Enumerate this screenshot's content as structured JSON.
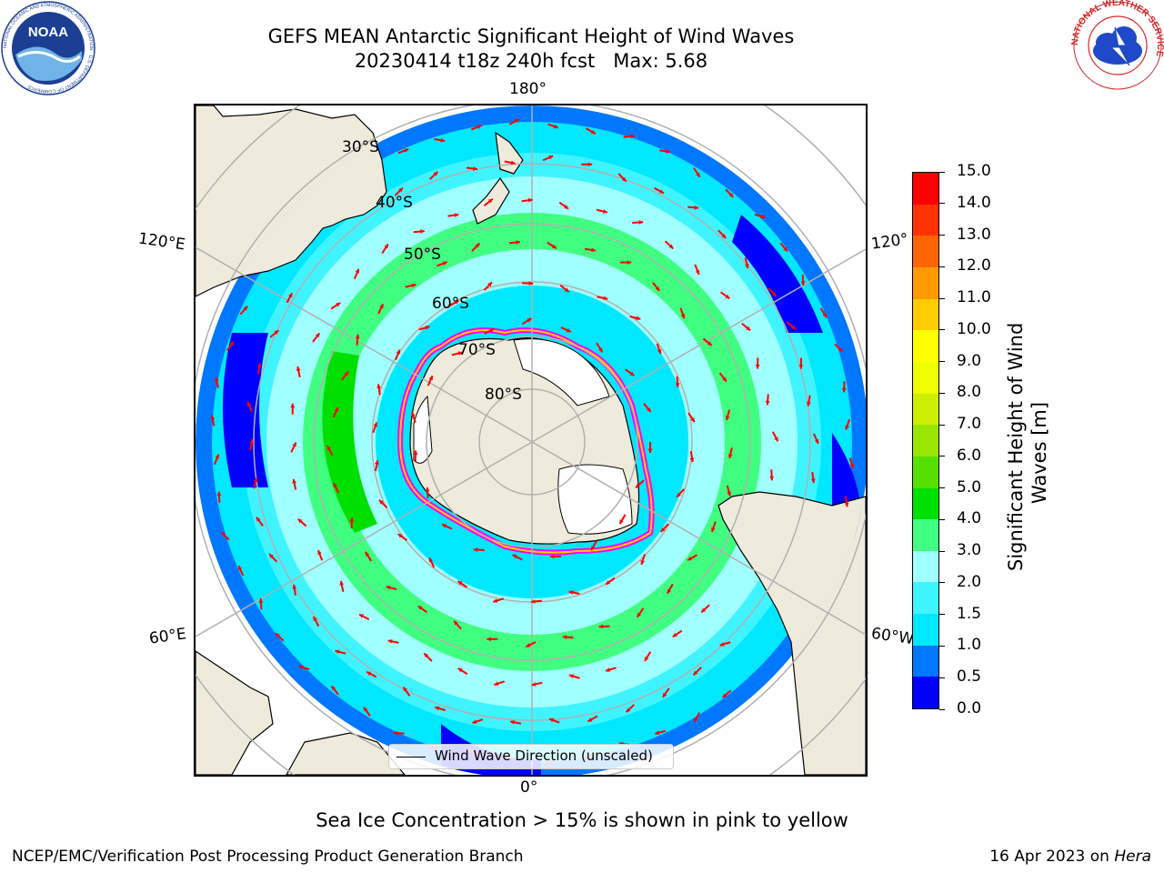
{
  "title": {
    "line1": "GEFS MEAN Antarctic Significant Height of Wind Waves",
    "line2": "20230414 t18z 240h fcst   Max: 5.68"
  },
  "logos": {
    "left_text": "NOAA",
    "left_ring_text": "NATIONAL OCEANIC AND ATMOSPHERIC ADMINISTRATION · U.S. DEPARTMENT OF COMMERCE",
    "right_ring_text": "NATIONAL WEATHER SERVICE"
  },
  "map": {
    "projection": "south-polar-stereographic",
    "longitude_labels": {
      "top": "180°",
      "bottom": "0°",
      "upper_left": "120°E",
      "upper_right": "120°",
      "lower_left": "60°E",
      "lower_right": "60°W"
    },
    "latitude_labels": [
      "30°S",
      "40°S",
      "50°S",
      "60°S",
      "70°S",
      "80°S"
    ],
    "colors": {
      "land": "#efebdc",
      "ice_shelf": "#ffffff",
      "grid": "#b0b0b0",
      "arrow": "#ff0000",
      "sea_ice_edge": [
        "#ff00ff",
        "#ff66cc",
        "#ffcc00"
      ]
    }
  },
  "legend": {
    "label": "Wind Wave Direction (unscaled)"
  },
  "colorbar": {
    "title_line1": "Significant Height of Wind",
    "title_line2": "Waves [m]",
    "ticks": [
      "15.0",
      "14.0",
      "13.0",
      "12.0",
      "11.0",
      "10.0",
      "9.0",
      "8.0",
      "7.0",
      "6.0",
      "5.0",
      "4.0",
      "3.0",
      "2.0",
      "1.5",
      "1.0",
      "0.5",
      "0.0"
    ],
    "segments_bottom_to_top": [
      "#0000ff",
      "#0077ff",
      "#00e8ff",
      "#40f4ff",
      "#a0ffff",
      "#40ff80",
      "#00e000",
      "#55e000",
      "#99e400",
      "#ccee00",
      "#eeff00",
      "#ffff00",
      "#ffcc00",
      "#ff9900",
      "#ff6600",
      "#ff3300",
      "#ff0000"
    ]
  },
  "note": "Sea Ice Concentration > 15% is shown in pink to yellow",
  "footer": {
    "left": "NCEP/EMC/Verification Post Processing Product Generation Branch",
    "right_prefix": "16 Apr 2023 on ",
    "right_italic": "Hera"
  }
}
